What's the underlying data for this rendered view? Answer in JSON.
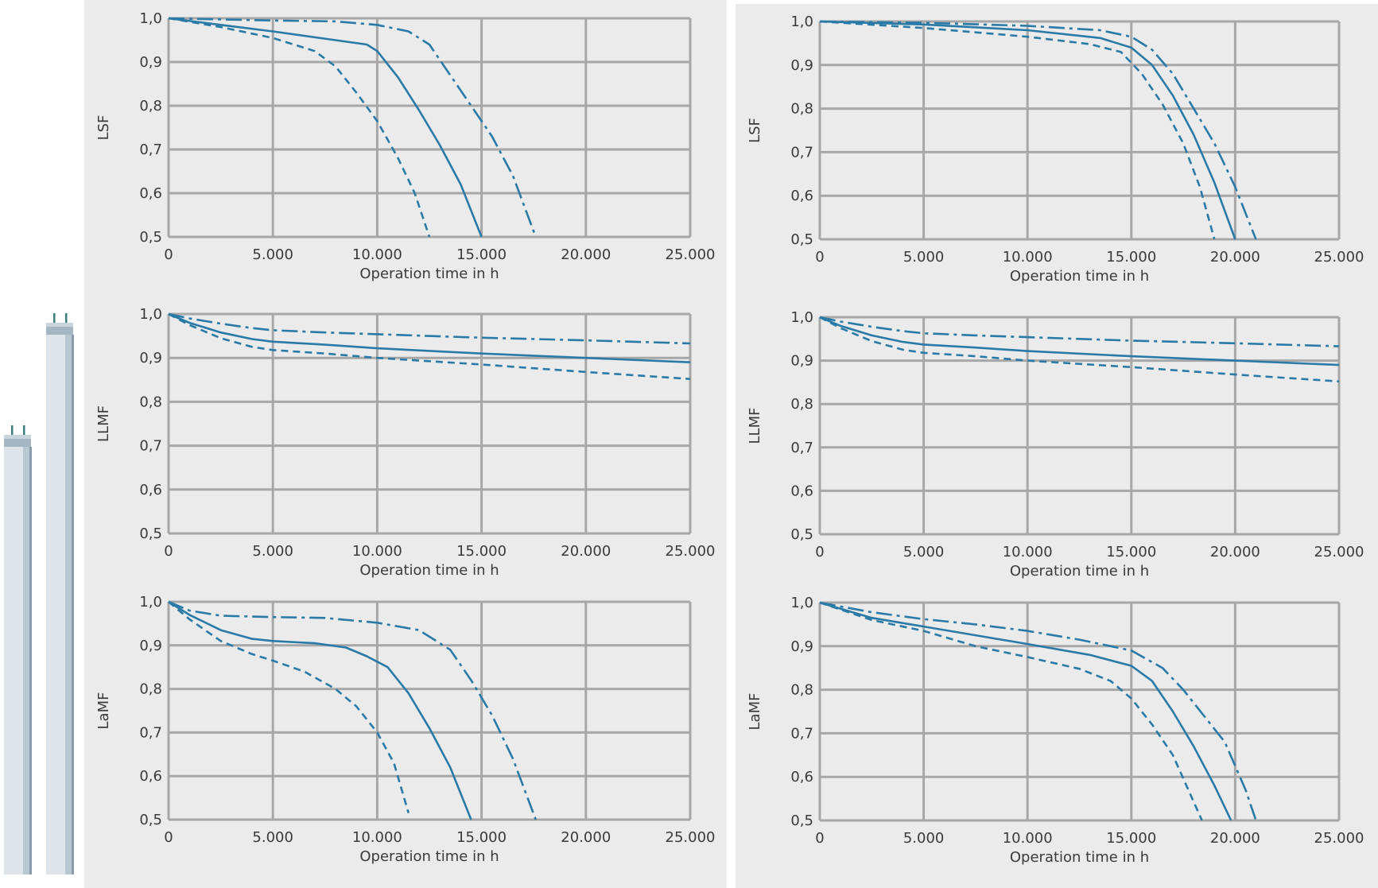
{
  "chart_data": [
    {
      "type": "line",
      "panel": "left",
      "ylabel": "LSF",
      "xlabel": "Operation time in h",
      "xlim": [
        0,
        25000
      ],
      "ylim": [
        0.5,
        1.0
      ],
      "grid": true,
      "xticks": [
        0,
        5000,
        10000,
        15000,
        20000,
        25000
      ],
      "xticklabels": [
        "0",
        "5.000",
        "10.000",
        "15.000",
        "20.000",
        "25.000"
      ],
      "yticks": [
        0.5,
        0.6,
        0.7,
        0.8,
        0.9,
        1.0
      ],
      "yticklabels": [
        "0,5",
        "0,6",
        "0,7",
        "0,8",
        "0,9",
        "1,0"
      ],
      "series": [
        {
          "style": "dashed",
          "points": [
            [
              0,
              1.0
            ],
            [
              2500,
              0.98
            ],
            [
              5000,
              0.955
            ],
            [
              7000,
              0.925
            ],
            [
              8000,
              0.89
            ],
            [
              9000,
              0.83
            ],
            [
              10000,
              0.765
            ],
            [
              11000,
              0.68
            ],
            [
              11800,
              0.6
            ],
            [
              12500,
              0.5
            ]
          ]
        },
        {
          "style": "solid",
          "points": [
            [
              0,
              1.0
            ],
            [
              2500,
              0.985
            ],
            [
              5000,
              0.97
            ],
            [
              8000,
              0.95
            ],
            [
              9500,
              0.94
            ],
            [
              10000,
              0.925
            ],
            [
              11000,
              0.865
            ],
            [
              12000,
              0.79
            ],
            [
              13000,
              0.71
            ],
            [
              14000,
              0.62
            ],
            [
              15000,
              0.5
            ]
          ]
        },
        {
          "style": "dashdot",
          "points": [
            [
              0,
              1.0
            ],
            [
              5000,
              0.995
            ],
            [
              8000,
              0.993
            ],
            [
              10000,
              0.985
            ],
            [
              11500,
              0.97
            ],
            [
              12500,
              0.94
            ],
            [
              13500,
              0.87
            ],
            [
              14500,
              0.8
            ],
            [
              15500,
              0.73
            ],
            [
              16500,
              0.64
            ],
            [
              17600,
              0.5
            ]
          ]
        }
      ]
    },
    {
      "type": "line",
      "panel": "right",
      "ylabel": "LSF",
      "xlabel": "Operation time in h",
      "xlim": [
        0,
        25000
      ],
      "ylim": [
        0.5,
        1.0
      ],
      "grid": true,
      "xticks": [
        0,
        5000,
        10000,
        15000,
        20000,
        25000
      ],
      "xticklabels": [
        "0",
        "5.000",
        "10.000",
        "15.000",
        "20.000",
        "25.000"
      ],
      "yticks": [
        0.5,
        0.6,
        0.7,
        0.8,
        0.9,
        1.0
      ],
      "yticklabels": [
        "0,5",
        "0,6",
        "0,7",
        "0,8",
        "0,9",
        "1,0"
      ],
      "series": [
        {
          "style": "dashed",
          "points": [
            [
              0,
              1.0
            ],
            [
              5000,
              0.985
            ],
            [
              10000,
              0.965
            ],
            [
              13000,
              0.948
            ],
            [
              14500,
              0.93
            ],
            [
              15500,
              0.88
            ],
            [
              16500,
              0.81
            ],
            [
              17500,
              0.72
            ],
            [
              18300,
              0.62
            ],
            [
              19000,
              0.5
            ]
          ]
        },
        {
          "style": "solid",
          "points": [
            [
              0,
              1.0
            ],
            [
              5000,
              0.993
            ],
            [
              10000,
              0.98
            ],
            [
              13500,
              0.962
            ],
            [
              15000,
              0.94
            ],
            [
              16000,
              0.9
            ],
            [
              17000,
              0.83
            ],
            [
              18000,
              0.74
            ],
            [
              19000,
              0.63
            ],
            [
              20000,
              0.5
            ]
          ]
        },
        {
          "style": "dashdot",
          "points": [
            [
              0,
              1.0
            ],
            [
              5000,
              0.997
            ],
            [
              10000,
              0.99
            ],
            [
              13500,
              0.98
            ],
            [
              15000,
              0.965
            ],
            [
              16000,
              0.935
            ],
            [
              17000,
              0.88
            ],
            [
              18000,
              0.8
            ],
            [
              19000,
              0.72
            ],
            [
              20000,
              0.62
            ],
            [
              21000,
              0.5
            ]
          ]
        }
      ]
    },
    {
      "type": "line",
      "panel": "left",
      "ylabel": "LLMF",
      "xlabel": "Operation time in h",
      "xlim": [
        0,
        25000
      ],
      "ylim": [
        0.5,
        1.0
      ],
      "grid": true,
      "xticks": [
        0,
        5000,
        10000,
        15000,
        20000,
        25000
      ],
      "xticklabels": [
        "0",
        "5.000",
        "10.000",
        "15.000",
        "20.000",
        "25.000"
      ],
      "yticks": [
        0.5,
        0.6,
        0.7,
        0.8,
        0.9,
        1.0
      ],
      "yticklabels": [
        "0,5",
        "0,6",
        "0,7",
        "0,8",
        "0,9",
        "1,0"
      ],
      "series": [
        {
          "style": "dashed",
          "points": [
            [
              0,
              1.0
            ],
            [
              1000,
              0.975
            ],
            [
              2500,
              0.945
            ],
            [
              4000,
              0.925
            ],
            [
              5000,
              0.918
            ],
            [
              7500,
              0.91
            ],
            [
              10000,
              0.9
            ],
            [
              15000,
              0.885
            ],
            [
              20000,
              0.868
            ],
            [
              25000,
              0.852
            ]
          ]
        },
        {
          "style": "solid",
          "points": [
            [
              0,
              1.0
            ],
            [
              1000,
              0.98
            ],
            [
              2500,
              0.958
            ],
            [
              4000,
              0.943
            ],
            [
              5000,
              0.937
            ],
            [
              7500,
              0.93
            ],
            [
              10000,
              0.922
            ],
            [
              15000,
              0.91
            ],
            [
              20000,
              0.9
            ],
            [
              25000,
              0.89
            ]
          ]
        },
        {
          "style": "dashdot",
          "points": [
            [
              0,
              1.0
            ],
            [
              1000,
              0.99
            ],
            [
              2500,
              0.978
            ],
            [
              4000,
              0.968
            ],
            [
              5000,
              0.963
            ],
            [
              7500,
              0.958
            ],
            [
              10000,
              0.954
            ],
            [
              15000,
              0.946
            ],
            [
              20000,
              0.94
            ],
            [
              25000,
              0.933
            ]
          ]
        }
      ]
    },
    {
      "type": "line",
      "panel": "right",
      "ylabel": "LLMF",
      "xlabel": "Operation time in h",
      "xlim": [
        0,
        25000
      ],
      "ylim": [
        0.5,
        1.0
      ],
      "grid": true,
      "xticks": [
        0,
        5000,
        10000,
        15000,
        20000,
        25000
      ],
      "xticklabels": [
        "0",
        "5.000",
        "10.000",
        "15.000",
        "20.000",
        "25.000"
      ],
      "yticks": [
        0.5,
        0.6,
        0.7,
        0.8,
        0.9,
        1.0
      ],
      "yticklabels": [
        "0,5",
        "0,6",
        "0,7",
        "0,8",
        "0,9",
        "1,0"
      ],
      "series": [
        {
          "style": "dashed",
          "points": [
            [
              0,
              1.0
            ],
            [
              1000,
              0.975
            ],
            [
              2500,
              0.945
            ],
            [
              4000,
              0.925
            ],
            [
              5000,
              0.918
            ],
            [
              7500,
              0.91
            ],
            [
              10000,
              0.9
            ],
            [
              15000,
              0.885
            ],
            [
              20000,
              0.868
            ],
            [
              25000,
              0.852
            ]
          ]
        },
        {
          "style": "solid",
          "points": [
            [
              0,
              1.0
            ],
            [
              1000,
              0.98
            ],
            [
              2500,
              0.958
            ],
            [
              4000,
              0.943
            ],
            [
              5000,
              0.937
            ],
            [
              7500,
              0.93
            ],
            [
              10000,
              0.922
            ],
            [
              15000,
              0.91
            ],
            [
              20000,
              0.9
            ],
            [
              25000,
              0.89
            ]
          ]
        },
        {
          "style": "dashdot",
          "points": [
            [
              0,
              1.0
            ],
            [
              1000,
              0.99
            ],
            [
              2500,
              0.978
            ],
            [
              4000,
              0.968
            ],
            [
              5000,
              0.963
            ],
            [
              7500,
              0.958
            ],
            [
              10000,
              0.954
            ],
            [
              15000,
              0.946
            ],
            [
              20000,
              0.94
            ],
            [
              25000,
              0.933
            ]
          ]
        }
      ]
    },
    {
      "type": "line",
      "panel": "left",
      "ylabel": "LaMF",
      "xlabel": "Operation time in h",
      "xlim": [
        0,
        25000
      ],
      "ylim": [
        0.5,
        1.0
      ],
      "grid": true,
      "xticks": [
        0,
        5000,
        10000,
        15000,
        20000,
        25000
      ],
      "xticklabels": [
        "0",
        "5.000",
        "10.000",
        "15.000",
        "20.000",
        "25.000"
      ],
      "yticks": [
        0.5,
        0.6,
        0.7,
        0.8,
        0.9,
        1.0
      ],
      "yticklabels": [
        "0,5",
        "0,6",
        "0,7",
        "0,8",
        "0,9",
        "1,0"
      ],
      "series": [
        {
          "style": "dashed",
          "points": [
            [
              0,
              1.0
            ],
            [
              1000,
              0.96
            ],
            [
              2500,
              0.91
            ],
            [
              4000,
              0.88
            ],
            [
              5000,
              0.865
            ],
            [
              6500,
              0.84
            ],
            [
              8000,
              0.8
            ],
            [
              9000,
              0.76
            ],
            [
              10000,
              0.7
            ],
            [
              10800,
              0.63
            ],
            [
              11500,
              0.515
            ]
          ]
        },
        {
          "style": "solid",
          "points": [
            [
              0,
              1.0
            ],
            [
              1000,
              0.97
            ],
            [
              2500,
              0.935
            ],
            [
              4000,
              0.915
            ],
            [
              5000,
              0.91
            ],
            [
              7000,
              0.905
            ],
            [
              8500,
              0.895
            ],
            [
              9500,
              0.875
            ],
            [
              10500,
              0.85
            ],
            [
              11500,
              0.79
            ],
            [
              12500,
              0.71
            ],
            [
              13500,
              0.62
            ],
            [
              14500,
              0.5
            ]
          ]
        },
        {
          "style": "dashdot",
          "points": [
            [
              0,
              1.0
            ],
            [
              1000,
              0.98
            ],
            [
              2500,
              0.968
            ],
            [
              5000,
              0.965
            ],
            [
              7500,
              0.963
            ],
            [
              10000,
              0.952
            ],
            [
              12000,
              0.935
            ],
            [
              13500,
              0.89
            ],
            [
              14500,
              0.82
            ],
            [
              15500,
              0.74
            ],
            [
              16500,
              0.64
            ],
            [
              17600,
              0.5
            ]
          ]
        }
      ]
    },
    {
      "type": "line",
      "panel": "right",
      "ylabel": "LaMF",
      "xlabel": "Operation time in h",
      "xlim": [
        0,
        25000
      ],
      "ylim": [
        0.5,
        1.0
      ],
      "grid": true,
      "xticks": [
        0,
        5000,
        10000,
        15000,
        20000,
        25000
      ],
      "xticklabels": [
        "0",
        "5.000",
        "10.000",
        "15.000",
        "20.000",
        "25.000"
      ],
      "yticks": [
        0.5,
        0.6,
        0.7,
        0.8,
        0.9,
        1.0
      ],
      "yticklabels": [
        "0,5",
        "0,6",
        "0,7",
        "0,8",
        "0,9",
        "1,0"
      ],
      "series": [
        {
          "style": "dashed",
          "points": [
            [
              0,
              1.0
            ],
            [
              2500,
              0.96
            ],
            [
              5000,
              0.935
            ],
            [
              7500,
              0.9
            ],
            [
              10000,
              0.875
            ],
            [
              12500,
              0.848
            ],
            [
              14000,
              0.82
            ],
            [
              15000,
              0.78
            ],
            [
              16000,
              0.72
            ],
            [
              17000,
              0.65
            ],
            [
              18400,
              0.5
            ]
          ]
        },
        {
          "style": "solid",
          "points": [
            [
              0,
              1.0
            ],
            [
              2500,
              0.965
            ],
            [
              5000,
              0.945
            ],
            [
              7500,
              0.925
            ],
            [
              10000,
              0.905
            ],
            [
              13000,
              0.88
            ],
            [
              15000,
              0.855
            ],
            [
              16000,
              0.82
            ],
            [
              17000,
              0.75
            ],
            [
              18000,
              0.67
            ],
            [
              19000,
              0.58
            ],
            [
              19800,
              0.5
            ]
          ]
        },
        {
          "style": "dashdot",
          "points": [
            [
              0,
              1.0
            ],
            [
              2500,
              0.978
            ],
            [
              5000,
              0.962
            ],
            [
              7500,
              0.95
            ],
            [
              10000,
              0.935
            ],
            [
              12500,
              0.915
            ],
            [
              15000,
              0.89
            ],
            [
              16500,
              0.85
            ],
            [
              17500,
              0.8
            ],
            [
              18500,
              0.74
            ],
            [
              19500,
              0.68
            ],
            [
              20500,
              0.57
            ],
            [
              21000,
              0.5
            ]
          ]
        }
      ]
    }
  ],
  "colors": {
    "line": "#2a7aa8",
    "grid": "#a7a7a7",
    "panel_background": "#ebebeb",
    "tick_text": "#3a3a3a"
  },
  "illustration": {
    "left_tube": "short-fluorescent-tube",
    "right_tube": "long-fluorescent-tube"
  }
}
